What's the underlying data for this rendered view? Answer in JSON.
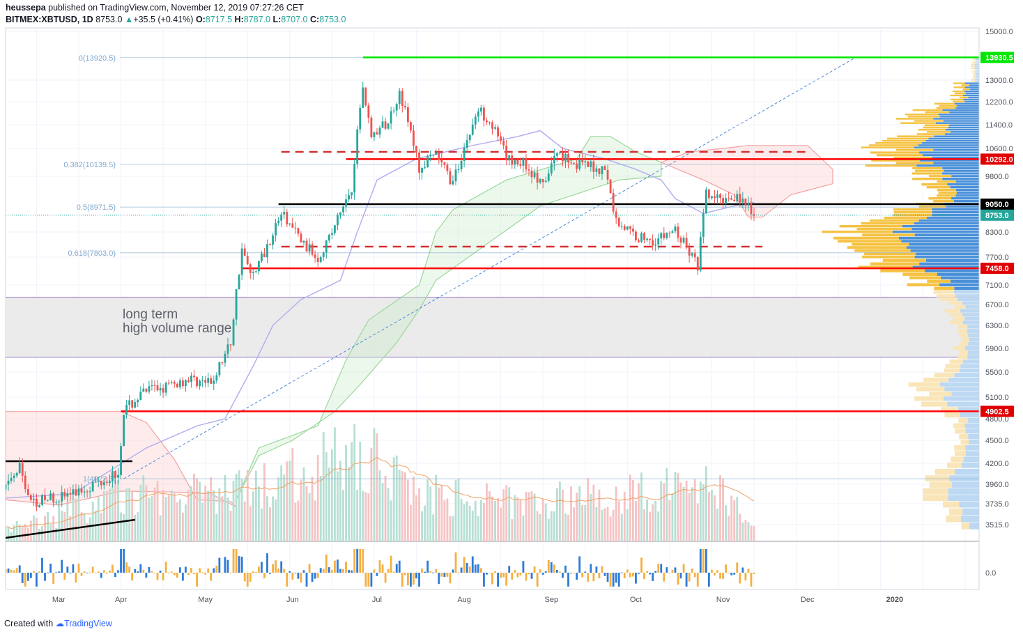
{
  "header": {
    "author": "heussepa",
    "published_text": "published on TradingView.com, November 12, 2019 07:27:26 CET",
    "symbol": "BITMEX:XBTUSD, 1D",
    "last": "8753.0",
    "change": "+35.5 (+0.41%)",
    "ohlc": {
      "o_label": "O:",
      "o": "8717.5",
      "h_label": "H:",
      "h": "8787.0",
      "l_label": "L:",
      "l": "8707.0",
      "c_label": "C:",
      "c": "8753.0"
    }
  },
  "footer": {
    "created_with": "Created with",
    "brand": "TradingView"
  },
  "colors": {
    "up": "#26a69a",
    "down": "#ef5350",
    "green_line": "#00e600",
    "red_line": "#ff0000",
    "black_line": "#000000",
    "fib": "#7fa8d0",
    "zone": "#e8e8e8",
    "zone_border": "#9575cd",
    "vol_up": "#b7dfd4",
    "vol_down": "#f6c3c3",
    "vp_yellow": "#f5c242",
    "vp_blue": "#4a90d9"
  },
  "annotation": {
    "line1": "long term",
    "line2": "high volume range"
  },
  "chart_data": {
    "type": "candlestick",
    "x_range": [
      "2019-02-19",
      "2020-01-31"
    ],
    "y_range": [
      3400,
      15000
    ],
    "x_ticks": [
      {
        "label": "Mar",
        "date": "2019-03-01"
      },
      {
        "label": "Apr",
        "date": "2019-04-01"
      },
      {
        "label": "May",
        "date": "2019-05-01"
      },
      {
        "label": "Jun",
        "date": "2019-06-01"
      },
      {
        "label": "Jul",
        "date": "2019-07-01"
      },
      {
        "label": "Aug",
        "date": "2019-08-01"
      },
      {
        "label": "Sep",
        "date": "2019-09-01"
      },
      {
        "label": "Oct",
        "date": "2019-10-01"
      },
      {
        "label": "Nov",
        "date": "2019-11-01"
      },
      {
        "label": "Dec",
        "date": "2019-12-01"
      },
      {
        "label": "2020",
        "date": "2020-01-01"
      }
    ],
    "y_ticks": [
      15000,
      13000,
      12200,
      11400,
      10600,
      9800,
      8300,
      7700,
      7100,
      6700,
      6300,
      5900,
      5500,
      5100,
      4800,
      4500,
      4200,
      3960,
      3735,
      3515
    ],
    "y_tick_labels": [
      "15000.0",
      "13000.0",
      "12200.0",
      "11400.0",
      "10600.0",
      "9800.0",
      "8300.0",
      "7700.0",
      "7100.0",
      "6700.0",
      "6300.0",
      "5900.0",
      "5500.0",
      "5100.0",
      "4800.0",
      "4500.0",
      "4200.0",
      "3960.0",
      "3735.0",
      "3515.0"
    ],
    "price_keypoints": [
      [
        "2019-02-19",
        3900
      ],
      [
        "2019-02-24",
        4150
      ],
      [
        "2019-02-28",
        3750
      ],
      [
        "2019-03-15",
        3850
      ],
      [
        "2019-03-31",
        4100
      ],
      [
        "2019-04-02",
        4900
      ],
      [
        "2019-04-10",
        5200
      ],
      [
        "2019-04-20",
        5300
      ],
      [
        "2019-04-25",
        5400
      ],
      [
        "2019-05-03",
        5300
      ],
      [
        "2019-05-10",
        6000
      ],
      [
        "2019-05-14",
        7900
      ],
      [
        "2019-05-17",
        7300
      ],
      [
        "2019-05-22",
        7800
      ],
      [
        "2019-05-28",
        8800
      ],
      [
        "2019-06-05",
        8000
      ],
      [
        "2019-06-10",
        7700
      ],
      [
        "2019-06-15",
        8300
      ],
      [
        "2019-06-22",
        9500
      ],
      [
        "2019-06-26",
        12800
      ],
      [
        "2019-06-29",
        11000
      ],
      [
        "2019-07-05",
        11500
      ],
      [
        "2019-07-09",
        12600
      ],
      [
        "2019-07-16",
        10000
      ],
      [
        "2019-07-22",
        10400
      ],
      [
        "2019-07-28",
        9600
      ],
      [
        "2019-08-06",
        11900
      ],
      [
        "2019-08-10",
        11600
      ],
      [
        "2019-08-16",
        10300
      ],
      [
        "2019-08-22",
        10200
      ],
      [
        "2019-08-29",
        9500
      ],
      [
        "2019-09-03",
        10500
      ],
      [
        "2019-09-10",
        10150
      ],
      [
        "2019-09-20",
        10000
      ],
      [
        "2019-09-24",
        8600
      ],
      [
        "2019-10-01",
        8200
      ],
      [
        "2019-10-08",
        8100
      ],
      [
        "2019-10-15",
        8350
      ],
      [
        "2019-10-23",
        7500
      ],
      [
        "2019-10-26",
        9300
      ],
      [
        "2019-10-31",
        9150
      ],
      [
        "2019-11-06",
        9300
      ],
      [
        "2019-11-12",
        8753
      ]
    ],
    "volume_keypoints": [
      [
        "2019-02-19",
        0.12
      ],
      [
        "2019-04-02",
        0.5
      ],
      [
        "2019-05-14",
        0.55
      ],
      [
        "2019-06-26",
        1.0
      ],
      [
        "2019-07-16",
        0.55
      ],
      [
        "2019-08-06",
        0.45
      ],
      [
        "2019-09-24",
        0.5
      ],
      [
        "2019-10-26",
        0.65
      ],
      [
        "2019-11-12",
        0.3
      ]
    ],
    "horizontal_levels": [
      {
        "price": 13930.5,
        "label": "13930.5",
        "color": "green",
        "from": "2019-06-26"
      },
      {
        "price": 10292.0,
        "label": "10292.0",
        "color": "red",
        "from": "2019-06-20"
      },
      {
        "price": 9050.0,
        "label": "9050.0",
        "color": "black",
        "from": "2019-05-27"
      },
      {
        "price": 7458.0,
        "label": "7458.0",
        "color": "red",
        "from": "2019-05-14"
      },
      {
        "price": 4902.5,
        "label": "4902.5",
        "color": "red",
        "from": "2019-04-01"
      }
    ],
    "last_price_label": "8753.0",
    "last_price": 8753.0,
    "dashed_levels": [
      {
        "price": 10500,
        "from": "2019-05-28",
        "to": "2019-12-01"
      },
      {
        "price": 7950,
        "from": "2019-05-28",
        "to": "2019-11-15"
      }
    ],
    "fib_levels": [
      {
        "label": "0(13920.5)",
        "price": 13920.5
      },
      {
        "label": "0.382(10139.5)",
        "price": 10139.5
      },
      {
        "label": "0.5(8971.5)",
        "price": 8971.5
      },
      {
        "label": "0.618(7803.0)",
        "price": 7803.0
      },
      {
        "label": "1(4022.5)",
        "price": 4022.5
      }
    ],
    "high_volume_range": [
      5750,
      6850
    ],
    "volume_profile_peak_price": 8050,
    "oscillator_zero_label": "0.0"
  }
}
